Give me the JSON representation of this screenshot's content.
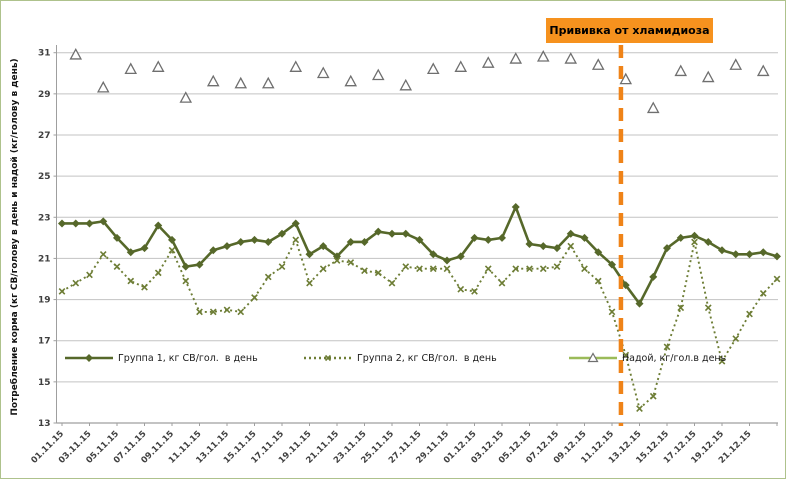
{
  "window": {
    "background": "#ffffff",
    "border_color": "#aec28c"
  },
  "chart_data": {
    "type": "line",
    "title": "",
    "xlabel": "",
    "ylabel": "Потребление корма (кг СВ/голову в день и надой (кг/голову в день)",
    "ylim": [
      13,
      31
    ],
    "yticks": [
      13,
      15,
      17,
      19,
      21,
      23,
      25,
      27,
      29,
      31
    ],
    "grid": true,
    "legend_position": "bottom-inside",
    "x_tick_labels": [
      "01.11.15",
      "03.11.15",
      "05.11.15",
      "07.11.15",
      "09.11.15",
      "11.11.15",
      "13.11.15",
      "15.11.15",
      "17.11.15",
      "19.11.15",
      "21.11.15",
      "23.11.15",
      "25.11.15",
      "27.11.15",
      "29.11.15",
      "01.12.15",
      "03.12.15",
      "05.12.15",
      "07.12.15",
      "09.12.15",
      "11.12.15",
      "13.12.15",
      "15.12.15",
      "17.12.15",
      "19.12.15",
      "21.12.15"
    ],
    "n_points": 53,
    "series": [
      {
        "name": "Группа 1, кг СВ/гол.  в день",
        "color": "#56682a",
        "line": "solid",
        "marker": "diamond",
        "values": [
          22.7,
          22.7,
          22.7,
          22.8,
          22.0,
          21.3,
          21.5,
          22.6,
          21.9,
          20.6,
          20.7,
          21.4,
          21.6,
          21.8,
          21.9,
          21.8,
          22.2,
          22.7,
          21.2,
          21.6,
          21.1,
          21.8,
          21.8,
          22.3,
          22.2,
          22.2,
          21.9,
          21.2,
          20.9,
          21.1,
          22.0,
          21.9,
          22.0,
          23.5,
          21.7,
          21.6,
          21.5,
          22.2,
          22.0,
          21.3,
          20.7,
          19.7,
          18.8,
          20.1,
          21.5,
          22.0,
          22.1,
          21.8,
          21.4,
          21.2,
          21.2,
          21.3,
          21.1
        ]
      },
      {
        "name": "Группа 2, кг СВ/гол.  в день",
        "color": "#6d7d35",
        "line": "dotted",
        "marker": "x",
        "values": [
          19.4,
          19.8,
          20.2,
          21.2,
          20.6,
          19.9,
          19.6,
          20.3,
          21.4,
          19.9,
          18.4,
          18.4,
          18.5,
          18.4,
          19.1,
          20.1,
          20.6,
          21.9,
          19.8,
          20.5,
          20.9,
          20.8,
          20.4,
          20.3,
          19.8,
          20.6,
          20.5,
          20.5,
          20.5,
          19.5,
          19.4,
          20.5,
          19.8,
          20.5,
          20.5,
          20.5,
          20.6,
          21.6,
          20.5,
          19.9,
          18.4,
          16.3,
          13.7,
          14.3,
          16.7,
          18.6,
          21.8,
          18.6,
          16.0,
          17.1,
          18.3,
          19.3,
          20.0
        ]
      },
      {
        "name": "Надой, кг/гол.в день",
        "color": "#9bbb59",
        "line": "none",
        "marker": "triangle-white",
        "marker_stroke": "#6f6f6f",
        "values": [
          null,
          30.9,
          null,
          29.3,
          null,
          30.2,
          null,
          30.3,
          null,
          28.8,
          null,
          29.6,
          null,
          29.5,
          null,
          29.5,
          null,
          30.3,
          null,
          30.0,
          null,
          29.6,
          null,
          29.9,
          null,
          29.4,
          null,
          30.2,
          null,
          30.3,
          null,
          30.5,
          null,
          30.7,
          null,
          30.8,
          null,
          30.7,
          null,
          30.4,
          null,
          29.7,
          null,
          28.3,
          null,
          30.1,
          null,
          29.8,
          null,
          30.4,
          null,
          30.1,
          null
        ]
      }
    ],
    "annotation": {
      "label": "Прививка от хламидиоза",
      "box_color": "#f6921e",
      "line_color": "#ef8318",
      "text_color": "#000000",
      "day_offset": 40.65
    },
    "axis_text_color": "#3f3f3f",
    "gridline_color": "#c3c3c3",
    "axis_line_color": "#9f9f9f"
  }
}
